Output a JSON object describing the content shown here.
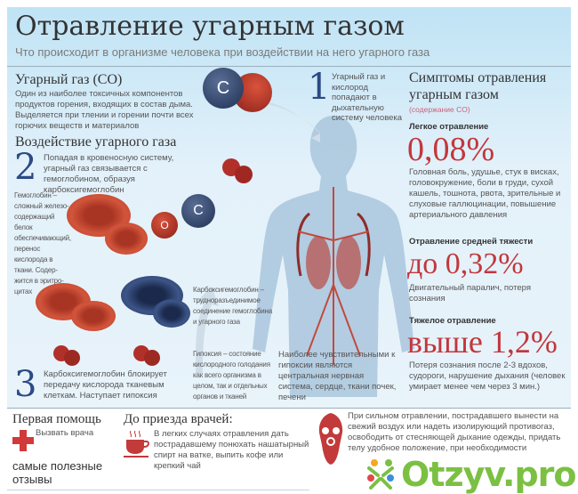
{
  "title": "Отравление угарным газом",
  "subtitle": "Что происходит в организме человека при воздействии на него угарного газа",
  "co": {
    "heading": "Угарный газ (CO)",
    "text": "Один из наиболее токсичных компонентов продуктов горения, входящих в состав дыма. Выделяется при тлении и горении почти всех горючих веществ и материалов",
    "atom_c": "C",
    "atom_o": "O"
  },
  "effect": {
    "heading": "Воздействие угарного газа"
  },
  "steps": [
    {
      "num": "1",
      "text": "Угарный газ и кислород попадают в дыхательную систему человека"
    },
    {
      "num": "2",
      "text": "Попадая в кровеносную систему, угарный газ связывается с гемоглобином, образуя карбоксигемоглобин"
    },
    {
      "num": "3",
      "text": "Карбоксигемоглобин блокирует передачу кислорода тканевым клеткам. Наступает гипоксия"
    }
  ],
  "notes": {
    "hemoglobin": "Гемоглобин – сложный железо-содержащий белок обеспечивающий, перенос кислорода в ткани. Содер-жится в эритро-цитах",
    "carboxy": "Карбоксигемоглобин – трудноразъединимое соединение гемоглобина и угарного газа",
    "hypoxia": "Гипоксия – состояние кислородного голодания как всего организма в целом, так и отдельных органов и тканей",
    "sensitive": "Наиболее чувствительными к гипоксии являются центральная нервная система, сердце, ткани почек, печени"
  },
  "symptoms": {
    "heading": "Симптомы отравления угарным газом",
    "sub": "(содержание CO)",
    "levels": [
      {
        "label": "Легкое отравление",
        "value": "0,08%",
        "text": "Головная боль, удушье, стук в висках, головокружение, боли в груди, сухой кашель, тошнота, рвота, зрительные и слуховые галлюцинации, повышение артериального давления"
      },
      {
        "label": "Отравление средней тяжести",
        "value": "до 0,32%",
        "text": "Двигательный паралич, потеря сознания"
      },
      {
        "label": "Тяжелое отравление",
        "value": "выше 1,2%",
        "text": "Потеря сознания после 2-3 вдохов, судороги, нарушение дыхания (человек умирает менее чем через 3 мин.)"
      }
    ]
  },
  "first_aid": {
    "heading": "Первая помощь",
    "call": "Вызвать врача"
  },
  "before_doctors": {
    "heading": "До приезда врачей:",
    "tea_text": "В легких случаях отравления дать пострадавшему понюхать нашатырный спирт на ватке, выпить кофе или крепкий чай",
    "mask_text": "При сильном отравлении, пострадавшего вынести на свежий воздух или надеть изолирующий противогаз, освободить от стесняющей дыхание одежды, придать телу удобное положение, при необходимости"
  },
  "watermark": {
    "tagline": "самые полезные отзывы",
    "brand": "Otzyv.pro"
  },
  "colors": {
    "accent_red": "#c2373c",
    "numeral_blue": "#2c4a86",
    "panel": "#dbeef8",
    "brand_green": "#7bc043"
  }
}
